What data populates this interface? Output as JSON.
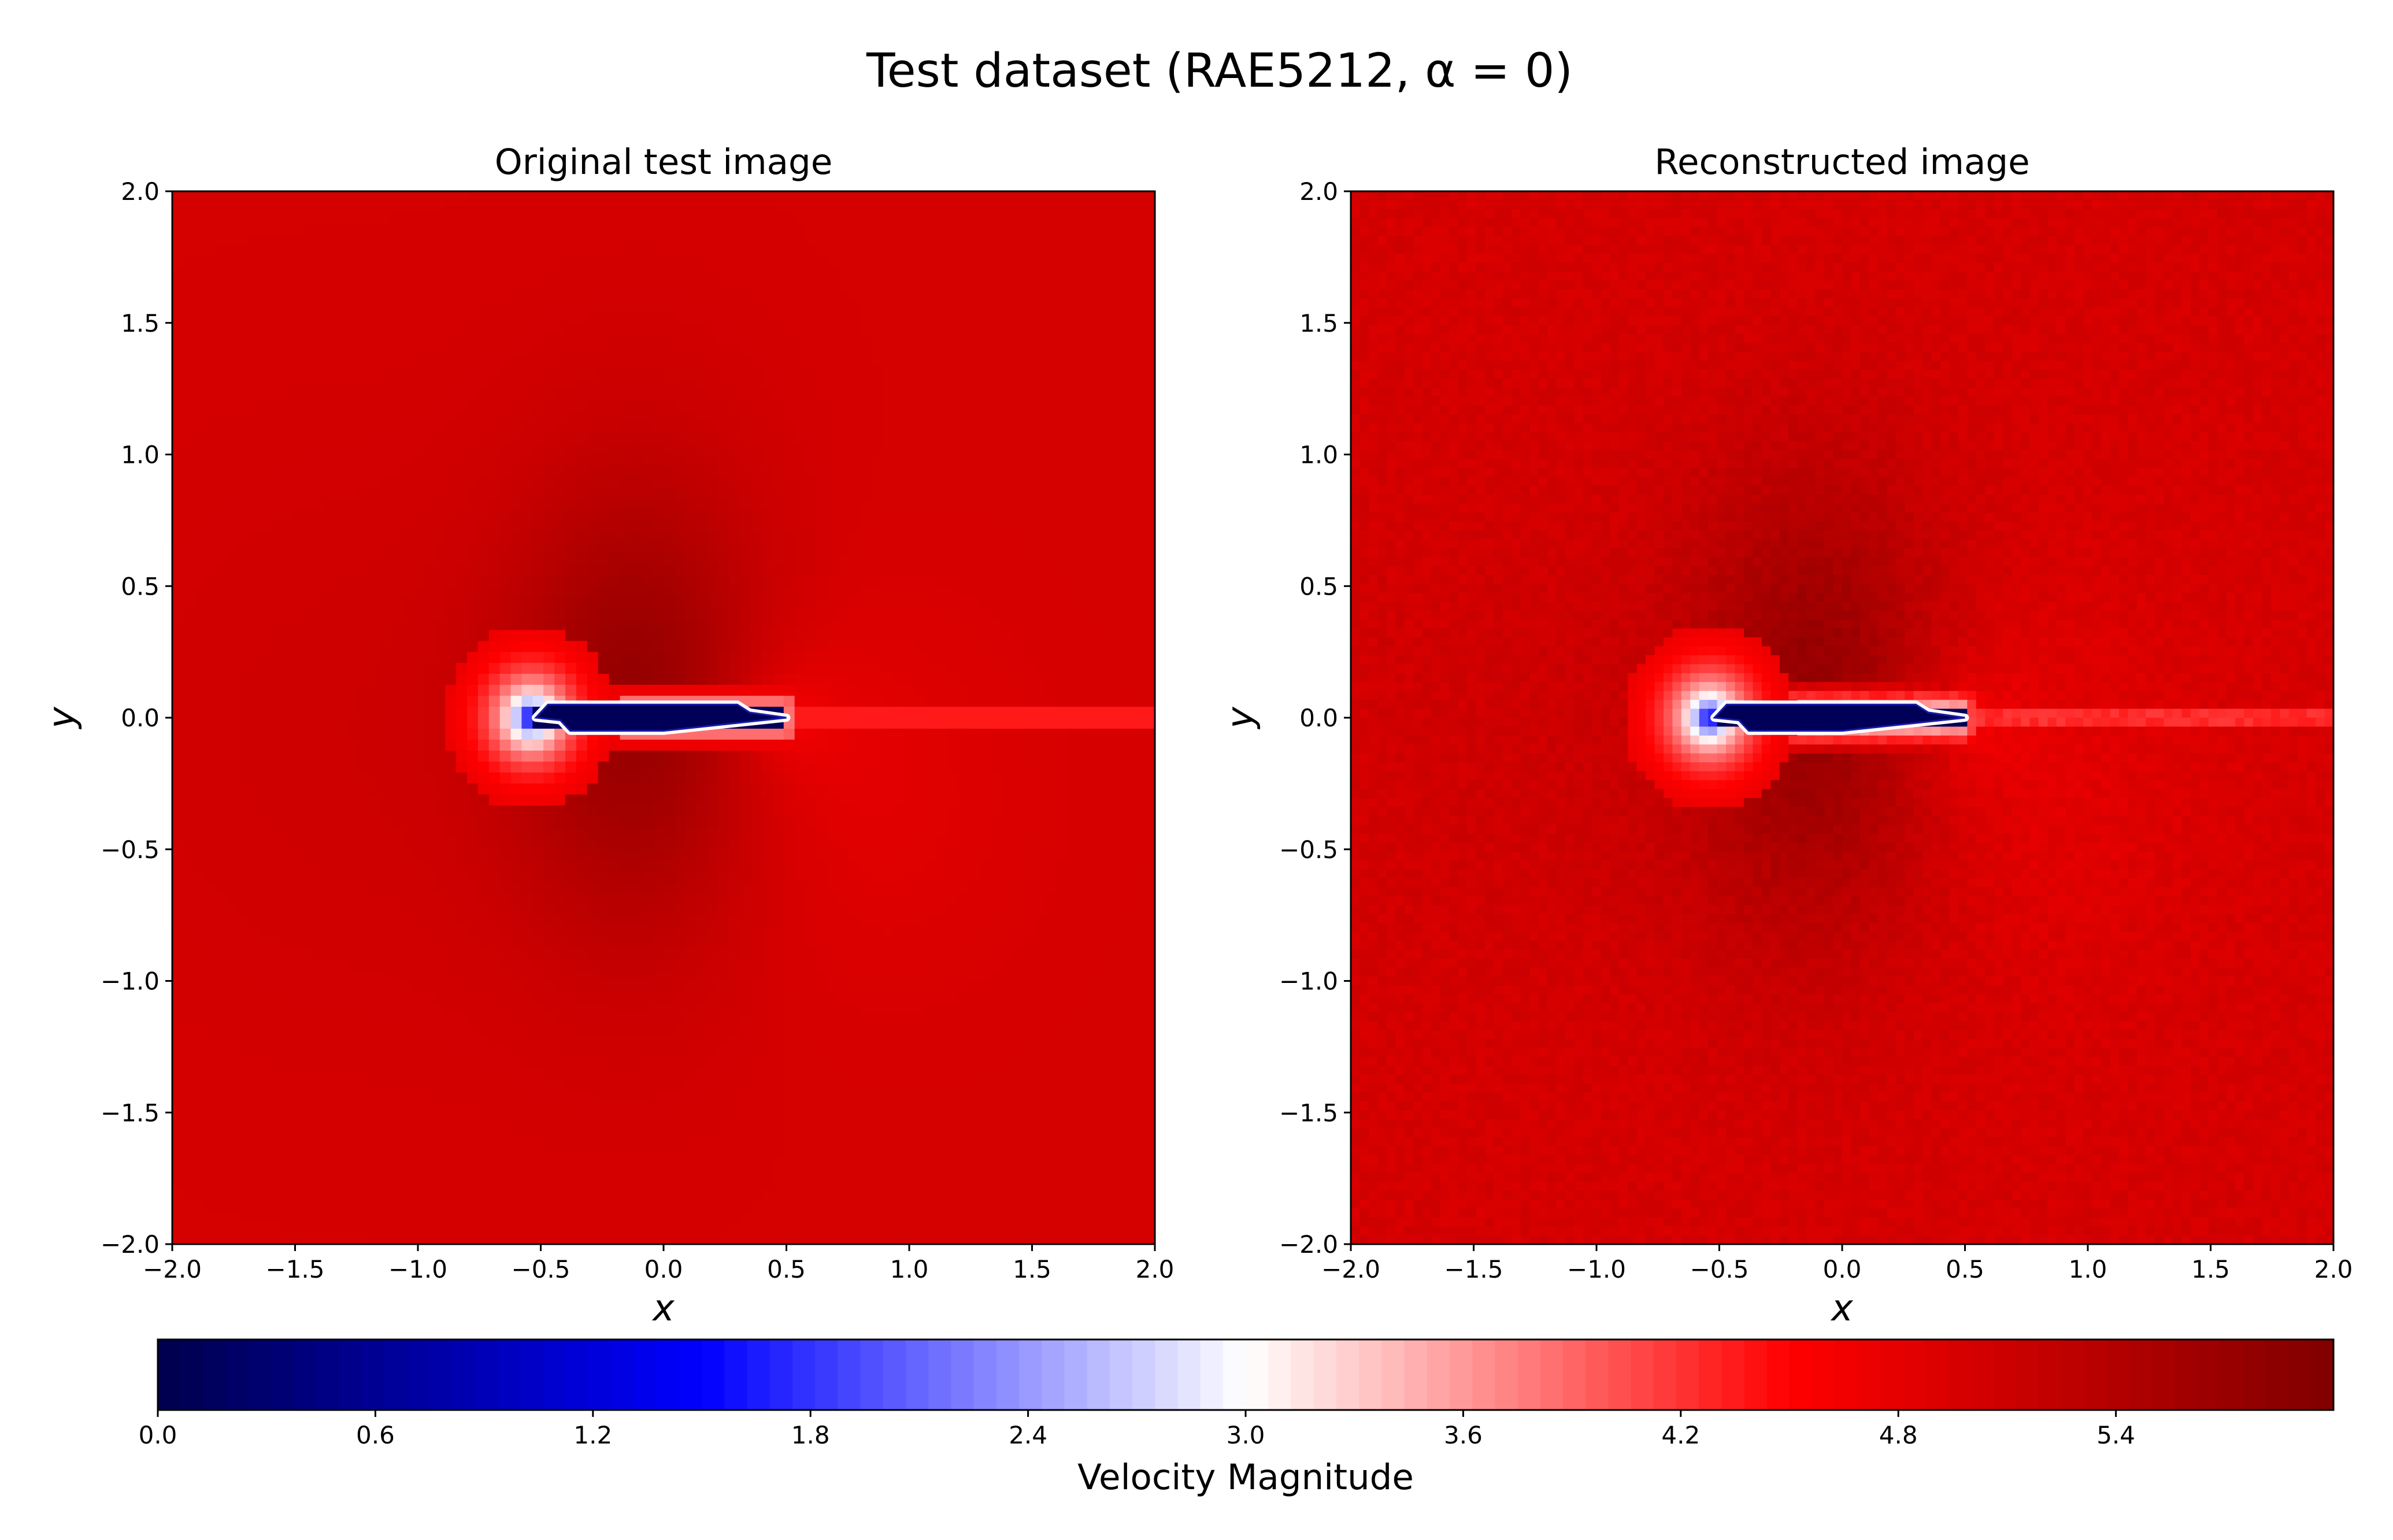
{
  "figure": {
    "suptitle": "Test dataset (RAE5212, α = 0)"
  },
  "chart_data": [
    {
      "type": "heatmap",
      "title": "Original test image",
      "xlabel": "x",
      "ylabel": "y",
      "xlim": [
        -2.0,
        2.0
      ],
      "ylim": [
        -2.0,
        2.0
      ],
      "xticks": [
        "−2.0",
        "−1.5",
        "−1.0",
        "−0.5",
        "0.0",
        "0.5",
        "1.0",
        "1.5",
        "2.0"
      ],
      "yticks": [
        "−2.0",
        "−1.5",
        "−1.0",
        "−0.5",
        "0.0",
        "0.5",
        "1.0",
        "1.5",
        "2.0"
      ],
      "field": "velocity magnitude",
      "freestream_value": 5.0,
      "peak_value": 5.7,
      "peak_location": [
        -0.1,
        0.05
      ],
      "min_value": 0.0,
      "body": {
        "x_range": [
          -0.52,
          0.5
        ],
        "y_range": [
          -0.05,
          0.05
        ]
      },
      "wake": {
        "x_range": [
          0.5,
          2.0
        ],
        "y": 0.0,
        "value": 3.8
      },
      "noise": false
    },
    {
      "type": "heatmap",
      "title": "Reconstructed image",
      "xlabel": "x",
      "ylabel": "y",
      "xlim": [
        -2.0,
        2.0
      ],
      "ylim": [
        -2.0,
        2.0
      ],
      "xticks": [
        "−2.0",
        "−1.5",
        "−1.0",
        "−0.5",
        "0.0",
        "0.5",
        "1.0",
        "1.5",
        "2.0"
      ],
      "yticks": [
        "−2.0",
        "−1.5",
        "−1.0",
        "−0.5",
        "0.0",
        "0.5",
        "1.0",
        "1.5",
        "2.0"
      ],
      "field": "velocity magnitude",
      "freestream_value": 5.0,
      "peak_value": 5.7,
      "peak_location": [
        -0.1,
        0.05
      ],
      "min_value": 0.0,
      "body": {
        "x_range": [
          -0.52,
          0.5
        ],
        "y_range": [
          -0.05,
          0.05
        ]
      },
      "wake": {
        "x_range": [
          0.5,
          2.0
        ],
        "y": 0.0,
        "value": 3.8
      },
      "noise": true
    }
  ],
  "colorbar": {
    "label": "Velocity Magnitude",
    "colormap": "seismic",
    "range": [
      0.0,
      6.0
    ],
    "ticks": [
      "0.0",
      "0.6",
      "1.2",
      "1.8",
      "2.4",
      "3.0",
      "3.6",
      "4.2",
      "4.8",
      "5.4"
    ],
    "orientation": "horizontal"
  }
}
